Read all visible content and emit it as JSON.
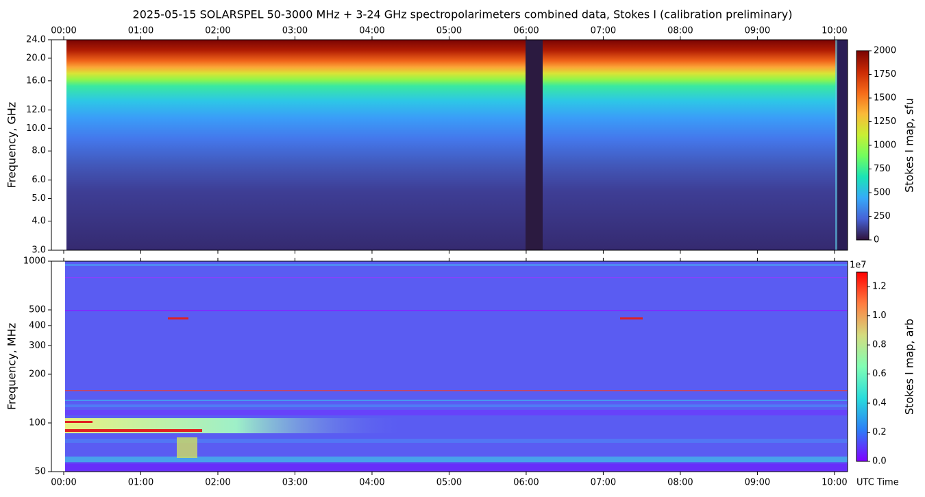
{
  "chart_data": [
    {
      "type": "heatmap",
      "title": "2025-05-15  SOLARSPEL  50-3000 MHz  +  3-24 GHz  spectropolarimeters combined data,  Stokes I  (calibration preliminary)",
      "ylabel": "Frequency, GHz",
      "xlim": [
        -0.16,
        10.17
      ],
      "xticks": [
        {
          "value": 0,
          "label": "00:00"
        },
        {
          "value": 1,
          "label": "01:00"
        },
        {
          "value": 2,
          "label": "02:00"
        },
        {
          "value": 3,
          "label": "03:00"
        },
        {
          "value": 4,
          "label": "04:00"
        },
        {
          "value": 5,
          "label": "05:00"
        },
        {
          "value": 6,
          "label": "06:00"
        },
        {
          "value": 7,
          "label": "07:00"
        },
        {
          "value": 8,
          "label": "08:00"
        },
        {
          "value": 9,
          "label": "09:00"
        },
        {
          "value": 10,
          "label": "10:00"
        }
      ],
      "ylim": [
        3,
        24
      ],
      "yscale": "log",
      "yticks": [
        {
          "value": 3,
          "label": "3.0"
        },
        {
          "value": 4,
          "label": "4.0"
        },
        {
          "value": 5,
          "label": "5.0"
        },
        {
          "value": 6,
          "label": "6.0"
        },
        {
          "value": 8,
          "label": "8.0"
        },
        {
          "value": 10,
          "label": "10.0"
        },
        {
          "value": 12,
          "label": "12.0"
        },
        {
          "value": 16,
          "label": "16.0"
        },
        {
          "value": 20,
          "label": "20.0"
        },
        {
          "value": 24,
          "label": "24.0"
        }
      ],
      "colorbar": {
        "label": "Stokes I map, sfu",
        "lim": [
          0,
          2000
        ],
        "ticks": [
          0,
          250,
          500,
          750,
          1000,
          1250,
          1500,
          1750,
          2000
        ],
        "colormap": [
          "#30123b",
          "#4662d7",
          "#36aaf9",
          "#1ae4b6",
          "#72fe5e",
          "#c8ef34",
          "#faba39",
          "#f66b19",
          "#ca2a04",
          "#7a0403"
        ]
      }
    },
    {
      "type": "heatmap",
      "ylabel": "Frequency, MHz",
      "xlabel": "UTC Time",
      "xlim": [
        -0.16,
        10.17
      ],
      "xticks": [
        {
          "value": 0,
          "label": "00:00"
        },
        {
          "value": 1,
          "label": "01:00"
        },
        {
          "value": 2,
          "label": "02:00"
        },
        {
          "value": 3,
          "label": "03:00"
        },
        {
          "value": 4,
          "label": "04:00"
        },
        {
          "value": 5,
          "label": "05:00"
        },
        {
          "value": 6,
          "label": "06:00"
        },
        {
          "value": 7,
          "label": "07:00"
        },
        {
          "value": 8,
          "label": "08:00"
        },
        {
          "value": 9,
          "label": "09:00"
        },
        {
          "value": 10,
          "label": "10:00"
        }
      ],
      "ylim": [
        50,
        1000
      ],
      "yscale": "log",
      "yticks": [
        50,
        100,
        200,
        300,
        400,
        500,
        1000
      ],
      "colorbar": {
        "label": "Stokes I map, arb",
        "offset_label": "1e7",
        "lim": [
          0,
          13000000
        ],
        "ticks": [
          {
            "value": 0,
            "label": "0.0"
          },
          {
            "value": 2000000,
            "label": "0.2"
          },
          {
            "value": 4000000,
            "label": "0.4"
          },
          {
            "value": 6000000,
            "label": "0.6"
          },
          {
            "value": 8000000,
            "label": "0.8"
          },
          {
            "value": 10000000,
            "label": "1.0"
          },
          {
            "value": 12000000,
            "label": "1.2"
          }
        ],
        "colormap": [
          "#8000ff",
          "#2c7ef7",
          "#2adcdc",
          "#80feb4",
          "#d4dc7f",
          "#ff7e41",
          "#ff0000"
        ]
      }
    }
  ]
}
